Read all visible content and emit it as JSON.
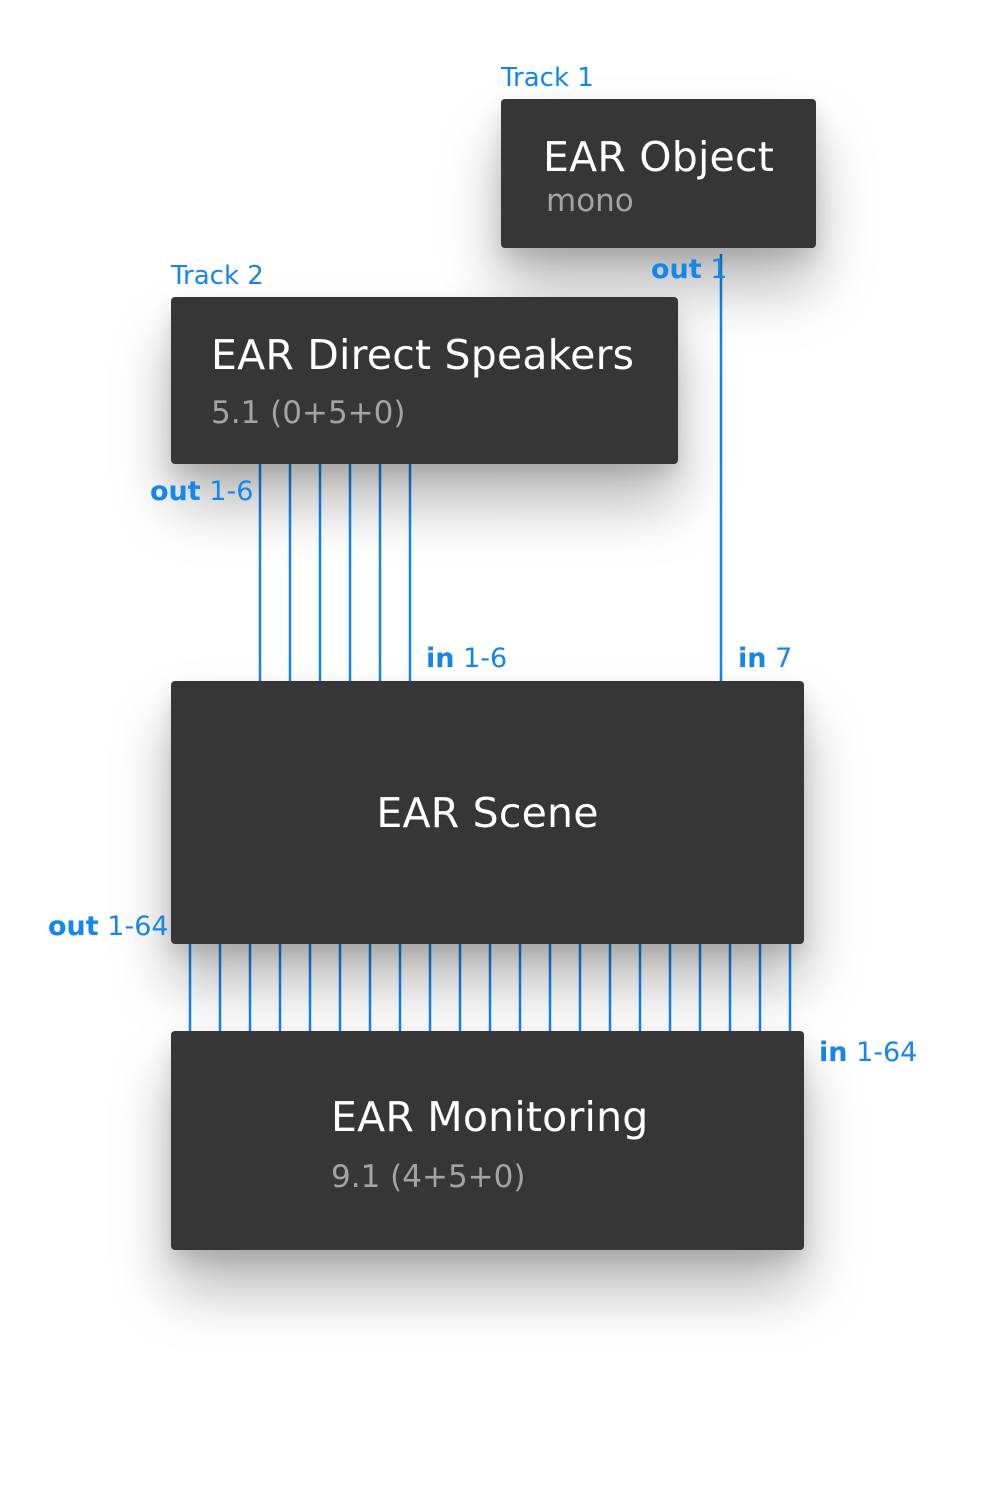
{
  "colors": {
    "block_bg": "#363636",
    "title": "#ffffff",
    "subtitle": "#a3a3a3",
    "wire": "#1686e8"
  },
  "tracks": {
    "track1": "Track 1",
    "track2": "Track 2"
  },
  "object": {
    "title": "EAR Object",
    "subtitle": "mono",
    "out_kw": "out",
    "out_range": "1"
  },
  "direct_speakers": {
    "title": "EAR Direct Speakers",
    "subtitle": "5.1 (0+5+0)",
    "out_kw": "out",
    "out_range": "1-6"
  },
  "scene": {
    "title": "EAR Scene",
    "in_kw": "in",
    "in_direct_range": "1-6",
    "in_object_range": "7",
    "out_kw": "out",
    "out_range": "1-64"
  },
  "monitoring": {
    "title": "EAR Monitoring",
    "subtitle": "9.1 (4+5+0)",
    "in_kw": "in",
    "in_range": "1-64"
  },
  "connections": {
    "direct_to_scene_channels": 6,
    "object_to_scene_channels": 1,
    "scene_to_monitoring_drawn_lines": 21
  }
}
